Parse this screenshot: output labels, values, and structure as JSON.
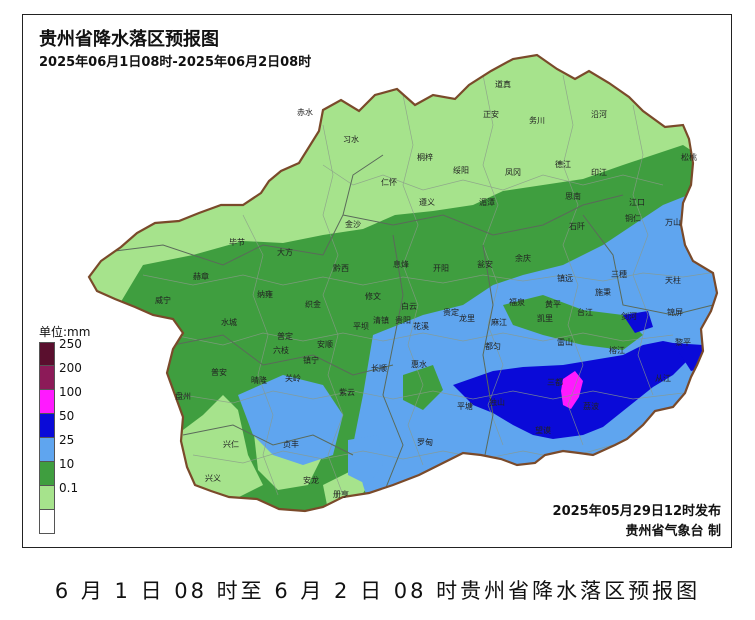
{
  "map": {
    "title": "贵州省降水落区预报图",
    "period": "2025年06月1日08时-2025年06月2日08时",
    "issue_time": "2025年05月29日12时发布",
    "issuer": "贵州省气象台 制"
  },
  "legend": {
    "unit": "单位:mm",
    "items": [
      {
        "label": "250",
        "color": "#5a0f2e"
      },
      {
        "label": "200",
        "color": "#8c1a58"
      },
      {
        "label": "100",
        "color": "#ff1aff"
      },
      {
        "label": "50",
        "color": "#0a0ad8"
      },
      {
        "label": "25",
        "color": "#5fa5ef"
      },
      {
        "label": "10",
        "color": "#3f9e3f"
      },
      {
        "label": "0.1",
        "color": "#a6e38c"
      },
      {
        "label": "",
        "color": "#ffffff"
      }
    ]
  },
  "counties": [
    "赤水",
    "习水",
    "道真",
    "正安",
    "务川",
    "沿河",
    "桐梓",
    "绥阳",
    "凤冈",
    "德江",
    "印江",
    "松桃",
    "遵义",
    "湄潭",
    "思南",
    "江口",
    "仁怀",
    "金沙",
    "石阡",
    "铜仁",
    "万山",
    "毕节",
    "大方",
    "黔西",
    "息烽",
    "开阳",
    "瓮安",
    "余庆",
    "镇远",
    "三穗",
    "天柱",
    "赫章",
    "威宁",
    "纳雍",
    "织金",
    "修文",
    "白云",
    "贵阳",
    "龙里",
    "福泉",
    "黄平",
    "施秉",
    "台江",
    "剑河",
    "锦屏",
    "水城",
    "六枝",
    "普定",
    "安顺",
    "平坝",
    "清镇",
    "花溪",
    "贵定",
    "都匀",
    "麻江",
    "凯里",
    "雷山",
    "榕江",
    "黎平",
    "从江",
    "盘州",
    "普安",
    "晴隆",
    "关岭",
    "镇宁",
    "紫云",
    "长顺",
    "惠水",
    "平塘",
    "独山",
    "三都",
    "荔波",
    "兴仁",
    "贞丰",
    "望谟",
    "罗甸",
    "兴义",
    "安龙",
    "册亨"
  ],
  "caption": "6 月 1 日 08 时至 6 月 2 日 08 时贵州省降水落区预报图"
}
